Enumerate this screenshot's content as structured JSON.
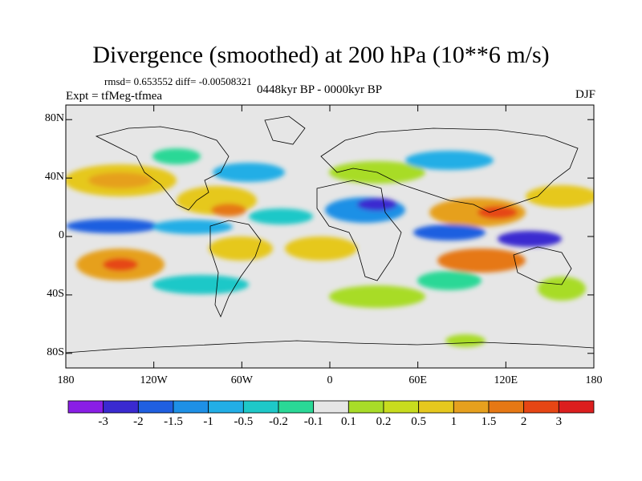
{
  "title": "Divergence (smoothed) at 200 hPa (10**6 m/s)",
  "stats": "rmsd= 0.653552 diff= -0.00508321",
  "experiment": "Expt = tfMeg-tfmea",
  "period": "0448kyr BP - 0000kyr BP",
  "season": "DJF",
  "map": {
    "projection": "cylindrical equidistant",
    "lon_range": [
      -180,
      180
    ],
    "lat_range": [
      -90,
      90
    ],
    "lat_ticks": [
      {
        "value": 80,
        "label": "80N"
      },
      {
        "value": 40,
        "label": "40N"
      },
      {
        "value": 0,
        "label": "0"
      },
      {
        "value": -40,
        "label": "40S"
      },
      {
        "value": -80,
        "label": "80S"
      }
    ],
    "lon_ticks": [
      {
        "value": -180,
        "label": "180"
      },
      {
        "value": -120,
        "label": "120W"
      },
      {
        "value": -60,
        "label": "60W"
      },
      {
        "value": 0,
        "label": "0"
      },
      {
        "value": 60,
        "label": "60E"
      },
      {
        "value": 120,
        "label": "120E"
      },
      {
        "value": 180,
        "label": "180"
      }
    ]
  },
  "colorbar": {
    "colors": [
      "#8a1ee6",
      "#3a2ad0",
      "#1f5fe0",
      "#1e90e6",
      "#22aee6",
      "#1ec8c8",
      "#2ad896",
      "#e6e6e6",
      "#a8dc28",
      "#c8dc1e",
      "#e6c81e",
      "#e6a01e",
      "#e67814",
      "#e64614",
      "#dc1e1e"
    ],
    "labels": [
      "-3",
      "-2",
      "-1.5",
      "-1",
      "-0.5",
      "-0.2",
      "-0.1",
      "0.1",
      "0.2",
      "0.5",
      "1",
      "1.5",
      "2",
      "3"
    ]
  }
}
